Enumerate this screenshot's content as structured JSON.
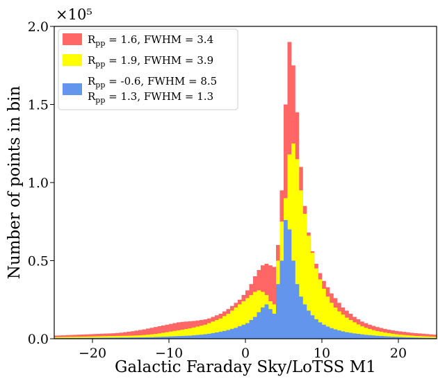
{
  "chart_data": {
    "type": "bar",
    "subtype": "overlaid-stacked-histogram",
    "title": "",
    "xlabel": "Galactic Faraday Sky/LoTSS M1",
    "ylabel": "Number of points in bin",
    "y_multiplier_label": "×10⁵",
    "xlim": [
      -25,
      25
    ],
    "ylim": [
      0,
      200000
    ],
    "x_ticks": [
      -20,
      -10,
      0,
      10,
      20
    ],
    "x_tick_labels": [
      "−20",
      "−10",
      "0",
      "10",
      "20"
    ],
    "y_ticks": [
      0,
      50000,
      100000,
      150000,
      200000
    ],
    "y_tick_labels": [
      "0.0",
      "0.5",
      "1.0",
      "1.5",
      "2.0"
    ],
    "grid": false,
    "legend_position": "top-left",
    "bin_width": 0.5,
    "bin_start": -25,
    "series": [
      {
        "name": "R_pp = 1.6,  FWHM = 3.4",
        "legend_lines": [
          "R",
          "pp",
          " = 1.6,  FWHM = 3.4"
        ],
        "color": "#ff6666",
        "values": [
          2000,
          2100,
          2200,
          2300,
          2400,
          2500,
          2600,
          2700,
          2800,
          2900,
          3000,
          3100,
          3200,
          3300,
          3400,
          3500,
          3700,
          3900,
          4200,
          4500,
          4800,
          5200,
          5600,
          6000,
          6500,
          7000,
          7500,
          8000,
          8500,
          9000,
          9500,
          10000,
          10500,
          10800,
          11000,
          11200,
          11400,
          11700,
          12000,
          12400,
          13000,
          14000,
          15000,
          16000,
          17500,
          19000,
          21000,
          23000,
          25000,
          28000,
          31000,
          35000,
          40000,
          44000,
          47000,
          48000,
          47000,
          46000,
          60000,
          95000,
          150000,
          190000,
          175000,
          145000,
          110000,
          85000,
          68000,
          56000,
          48000,
          42000,
          37000,
          33000,
          29000,
          26000,
          23000,
          20000,
          18000,
          16000,
          14000,
          12500,
          11000,
          10000,
          9000,
          8200,
          7500,
          6900,
          6300,
          5800,
          5400,
          5000,
          4700,
          4400,
          4100,
          3800,
          3600,
          3400,
          3200,
          3000,
          2800,
          2600
        ]
      },
      {
        "name": "R_pp = 1.9,  FWHM = 3.9",
        "legend_lines": [
          "R",
          "pp",
          " = 1.9,  FWHM = 3.9"
        ],
        "color": "#ffff00",
        "values": [
          1000,
          1050,
          1100,
          1150,
          1200,
          1250,
          1300,
          1350,
          1400,
          1450,
          1500,
          1550,
          1600,
          1650,
          1700,
          1750,
          1800,
          1850,
          1900,
          1950,
          2000,
          2100,
          2200,
          2400,
          2600,
          2800,
          3100,
          3400,
          3800,
          4200,
          4600,
          5000,
          5400,
          5800,
          6200,
          6700,
          7200,
          7800,
          8400,
          9000,
          10000,
          11000,
          12000,
          13000,
          14500,
          16000,
          18000,
          20000,
          22000,
          24000,
          26000,
          28000,
          30000,
          31000,
          30000,
          28000,
          24000,
          22000,
          50000,
          75000,
          90000,
          118000,
          125000,
          115000,
          95000,
          80000,
          66000,
          55000,
          45000,
          38000,
          32000,
          27000,
          23000,
          20000,
          17500,
          15500,
          13500,
          12000,
          10500,
          9200,
          8000,
          7000,
          6200,
          5500,
          4900,
          4400,
          4000,
          3600,
          3200,
          2900,
          2600,
          2400,
          2200,
          2000,
          1800,
          1700,
          1600,
          1500,
          1400,
          1300
        ]
      },
      {
        "name": "R_pp = -0.6, FWHM = 8.5 / R_pp = 1.3, FWHM = 1.3",
        "legend_lines": [
          "R",
          "pp",
          " = -0.6, FWHM = 8.5",
          "R",
          "pp",
          " = 1.3, FWHM = 1.3"
        ],
        "color": "#6495ed",
        "values": [
          400,
          420,
          440,
          460,
          480,
          500,
          520,
          540,
          560,
          580,
          600,
          620,
          640,
          660,
          680,
          700,
          720,
          740,
          760,
          780,
          800,
          840,
          880,
          920,
          960,
          1000,
          1100,
          1200,
          1300,
          1400,
          1500,
          1600,
          1700,
          1800,
          1900,
          2000,
          2200,
          2400,
          2600,
          2900,
          3200,
          3600,
          4000,
          4500,
          5000,
          5600,
          6300,
          7000,
          8000,
          9000,
          10000,
          12000,
          14000,
          17000,
          20000,
          22000,
          19000,
          16000,
          35000,
          50000,
          76000,
          70000,
          50000,
          35000,
          27000,
          22000,
          18000,
          15000,
          12500,
          10500,
          9000,
          7800,
          6800,
          6000,
          5300,
          4700,
          4200,
          3800,
          3400,
          3100,
          2800,
          2500,
          2300,
          2100,
          1900,
          1750,
          1600,
          1450,
          1300,
          1200,
          1100,
          1000,
          900,
          820,
          750,
          690,
          640,
          590,
          540,
          500
        ]
      }
    ]
  }
}
